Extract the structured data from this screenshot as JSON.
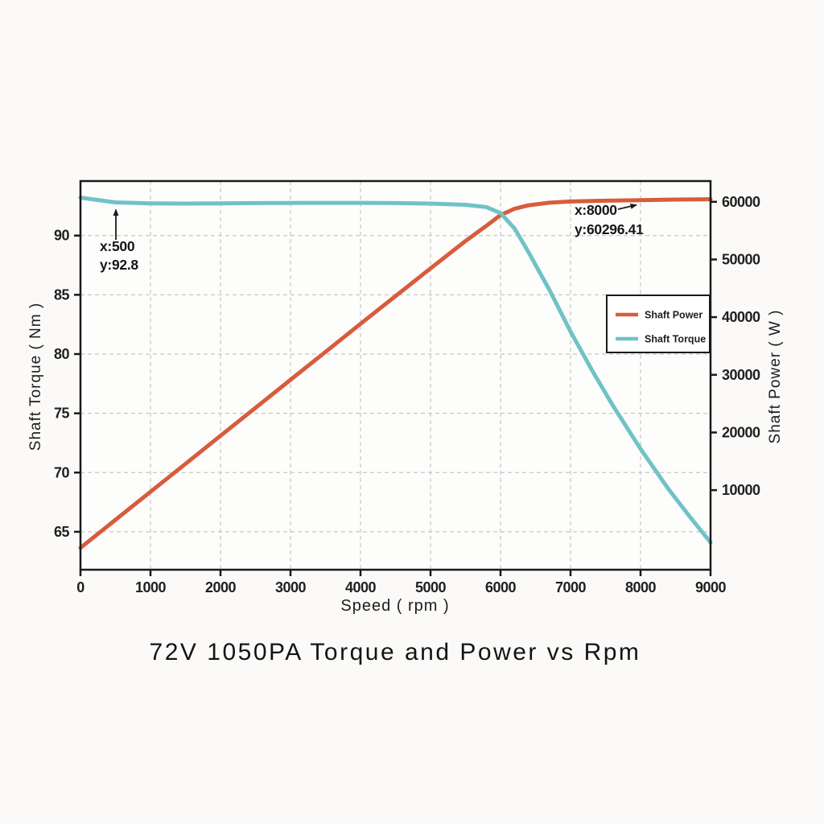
{
  "chart_data": {
    "type": "line",
    "title": "72V 1050PA Torque and Power vs Rpm",
    "xlabel": "Speed ( rpm )",
    "xlim": [
      0,
      9000
    ],
    "x_ticks": [
      0,
      1000,
      2000,
      3000,
      4000,
      5000,
      6000,
      7000,
      8000,
      9000
    ],
    "grid": true,
    "left_axis": {
      "label": "Shaft Torque ( Nm )",
      "ticks": [
        65,
        70,
        75,
        80,
        85,
        90
      ],
      "range": [
        61.8,
        94.6
      ]
    },
    "right_axis": {
      "label": "Shaft Power ( W )",
      "ticks": [
        10000,
        20000,
        30000,
        40000,
        50000,
        60000
      ],
      "range": [
        -3800,
        63600
      ]
    },
    "series": [
      {
        "name": "Shaft Power",
        "color": "#d85c3c",
        "axis": "right",
        "points": [
          [
            0,
            0
          ],
          [
            500,
            4850
          ],
          [
            1000,
            9710
          ],
          [
            1500,
            14560
          ],
          [
            2000,
            19420
          ],
          [
            2500,
            24270
          ],
          [
            3000,
            29130
          ],
          [
            3500,
            33980
          ],
          [
            4000,
            38840
          ],
          [
            4500,
            43650
          ],
          [
            5000,
            48450
          ],
          [
            5500,
            53200
          ],
          [
            5800,
            55850
          ],
          [
            6000,
            57700
          ],
          [
            6200,
            58800
          ],
          [
            6400,
            59400
          ],
          [
            6700,
            59850
          ],
          [
            7000,
            60050
          ],
          [
            7500,
            60200
          ],
          [
            8000,
            60296.41
          ],
          [
            8500,
            60390
          ],
          [
            9000,
            60450
          ]
        ]
      },
      {
        "name": "Shaft Torque",
        "color": "#70c2c6",
        "axis": "left",
        "points": [
          [
            0,
            93.2
          ],
          [
            250,
            93.0
          ],
          [
            500,
            92.8
          ],
          [
            1000,
            92.72
          ],
          [
            1500,
            92.7
          ],
          [
            2000,
            92.72
          ],
          [
            2500,
            92.74
          ],
          [
            3000,
            92.75
          ],
          [
            3500,
            92.76
          ],
          [
            4000,
            92.76
          ],
          [
            4500,
            92.74
          ],
          [
            5000,
            92.7
          ],
          [
            5500,
            92.6
          ],
          [
            5800,
            92.4
          ],
          [
            6000,
            91.9
          ],
          [
            6200,
            90.6
          ],
          [
            6400,
            88.6
          ],
          [
            6700,
            85.4
          ],
          [
            7000,
            81.9
          ],
          [
            7300,
            78.7
          ],
          [
            7600,
            75.7
          ],
          [
            8000,
            72.0
          ],
          [
            8400,
            68.6
          ],
          [
            8700,
            66.3
          ],
          [
            9000,
            64.1
          ]
        ]
      }
    ],
    "legend": {
      "position": "right-middle",
      "entries": [
        "Shaft Power",
        "Shaft Torque"
      ]
    },
    "annotations": [
      {
        "lines": [
          "x:500",
          "y:92.8"
        ],
        "x": 500,
        "y": 92.8,
        "axis": "left"
      },
      {
        "lines": [
          "x:8000",
          "y:60296.41"
        ],
        "x": 8000,
        "y": 60296.41,
        "axis": "right"
      }
    ]
  },
  "page": {
    "accent_orange": "#d85c3c",
    "accent_teal": "#70c2c6"
  }
}
